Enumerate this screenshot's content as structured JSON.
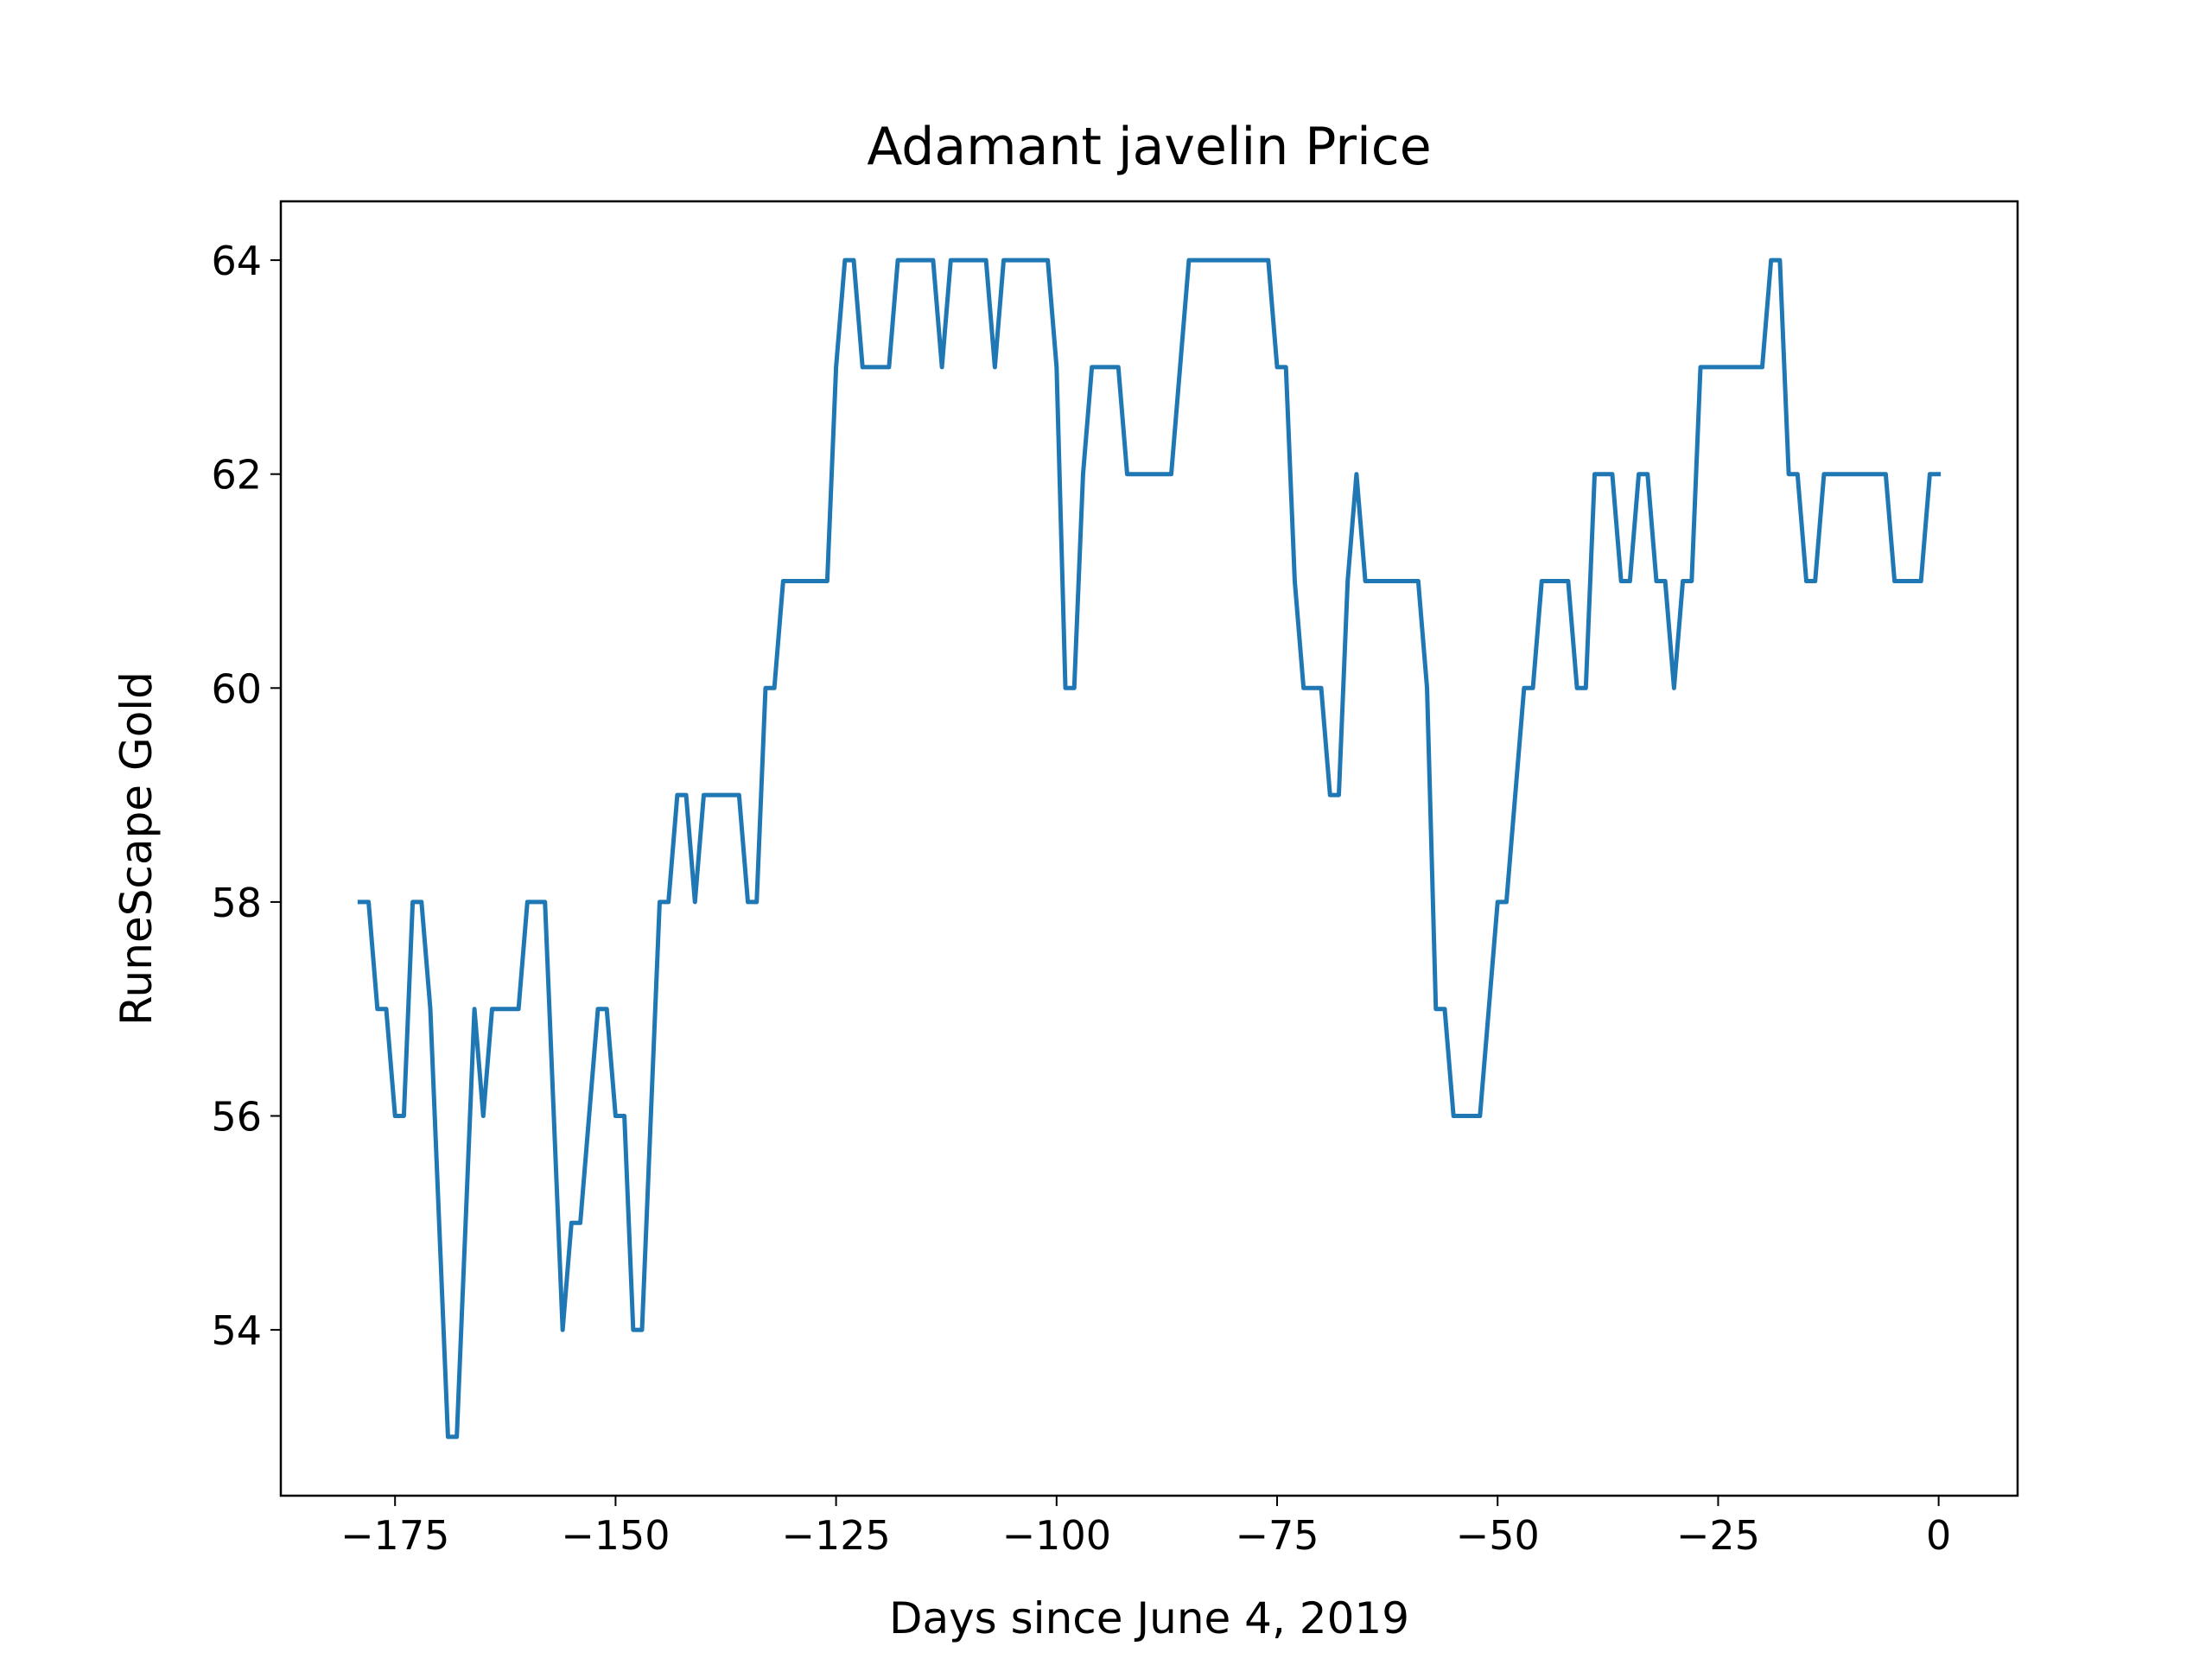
{
  "chart_data": {
    "type": "line",
    "title": "Adamant javelin Price",
    "x_label": "Days since June 4, 2019",
    "y_label": "RuneScape Gold",
    "color": "#1f77b4",
    "x": [
      -179,
      -178,
      -177,
      -176,
      -175,
      -174,
      -173,
      -172,
      -171,
      -170,
      -169,
      -168,
      -167,
      -166,
      -165,
      -164,
      -163,
      -162,
      -161,
      -160,
      -159,
      -158,
      -157,
      -156,
      -155,
      -154,
      -153,
      -152,
      -151,
      -150,
      -149,
      -148,
      -147,
      -146,
      -145,
      -144,
      -143,
      -142,
      -141,
      -140,
      -139,
      -138,
      -137,
      -136,
      -135,
      -134,
      -133,
      -132,
      -131,
      -130,
      -129,
      -128,
      -127,
      -126,
      -125,
      -124,
      -123,
      -122,
      -121,
      -120,
      -119,
      -118,
      -117,
      -116,
      -115,
      -114,
      -113,
      -112,
      -111,
      -110,
      -109,
      -108,
      -107,
      -106,
      -105,
      -104,
      -103,
      -102,
      -101,
      -100,
      -99,
      -98,
      -97,
      -96,
      -95,
      -94,
      -93,
      -92,
      -91,
      -90,
      -89,
      -88,
      -87,
      -86,
      -85,
      -84,
      -83,
      -82,
      -81,
      -80,
      -79,
      -78,
      -77,
      -76,
      -75,
      -74,
      -73,
      -72,
      -71,
      -70,
      -69,
      -68,
      -67,
      -66,
      -65,
      -64,
      -63,
      -62,
      -61,
      -60,
      -59,
      -58,
      -57,
      -56,
      -55,
      -54,
      -53,
      -52,
      -51,
      -50,
      -49,
      -48,
      -47,
      -46,
      -45,
      -44,
      -43,
      -42,
      -41,
      -40,
      -39,
      -38,
      -37,
      -36,
      -35,
      -34,
      -33,
      -32,
      -31,
      -30,
      -29,
      -28,
      -27,
      -26,
      -25,
      -24,
      -23,
      -22,
      -21,
      -20,
      -19,
      -18,
      -17,
      -16,
      -15,
      -14,
      -13,
      -12,
      -11,
      -10,
      -9,
      -8,
      -7,
      -6,
      -5,
      -4,
      -3,
      -2,
      -1,
      0
    ],
    "values": [
      58,
      58,
      57,
      57,
      56,
      56,
      58,
      58,
      57,
      55,
      53,
      53,
      55,
      57,
      56,
      57,
      57,
      57,
      57,
      58,
      58,
      58,
      56,
      54,
      55,
      55,
      56,
      57,
      57,
      56,
      56,
      54,
      54,
      56,
      58,
      58,
      59,
      59,
      58,
      59,
      59,
      59,
      59,
      59,
      58,
      58,
      60,
      60,
      61,
      61,
      61,
      61,
      61,
      61,
      63,
      64,
      64,
      63,
      63,
      63,
      63,
      64,
      64,
      64,
      64,
      64,
      63,
      64,
      64,
      64,
      64,
      64,
      63,
      64,
      64,
      64,
      64,
      64,
      64,
      63,
      60,
      60,
      62,
      63,
      63,
      63,
      63,
      62,
      62,
      62,
      62,
      62,
      62,
      63,
      64,
      64,
      64,
      64,
      64,
      64,
      64,
      64,
      64,
      64,
      63,
      63,
      61,
      60,
      60,
      60,
      59,
      59,
      61,
      62,
      61,
      61,
      61,
      61,
      61,
      61,
      61,
      60,
      57,
      57,
      56,
      56,
      56,
      56,
      57,
      58,
      58,
      59,
      60,
      60,
      61,
      61,
      61,
      61,
      60,
      60,
      62,
      62,
      62,
      61,
      61,
      62,
      62,
      61,
      61,
      60,
      61,
      61,
      63,
      63,
      63,
      63,
      63,
      63,
      63,
      63,
      64,
      64,
      62,
      62,
      61,
      61,
      62,
      62,
      62,
      62,
      62,
      62,
      62,
      62,
      61,
      61,
      61,
      61,
      62,
      62
    ],
    "xlim": [
      -187.95,
      8.95
    ],
    "ylim": [
      52.45,
      64.55
    ],
    "xticks": [
      {
        "value": -175,
        "label": "−175"
      },
      {
        "value": -150,
        "label": "−150"
      },
      {
        "value": -125,
        "label": "−125"
      },
      {
        "value": -100,
        "label": "−100"
      },
      {
        "value": -75,
        "label": "−75"
      },
      {
        "value": -50,
        "label": "−50"
      },
      {
        "value": -25,
        "label": "−25"
      },
      0
    ],
    "yticks": [
      54,
      56,
      58,
      60,
      62,
      64
    ]
  }
}
